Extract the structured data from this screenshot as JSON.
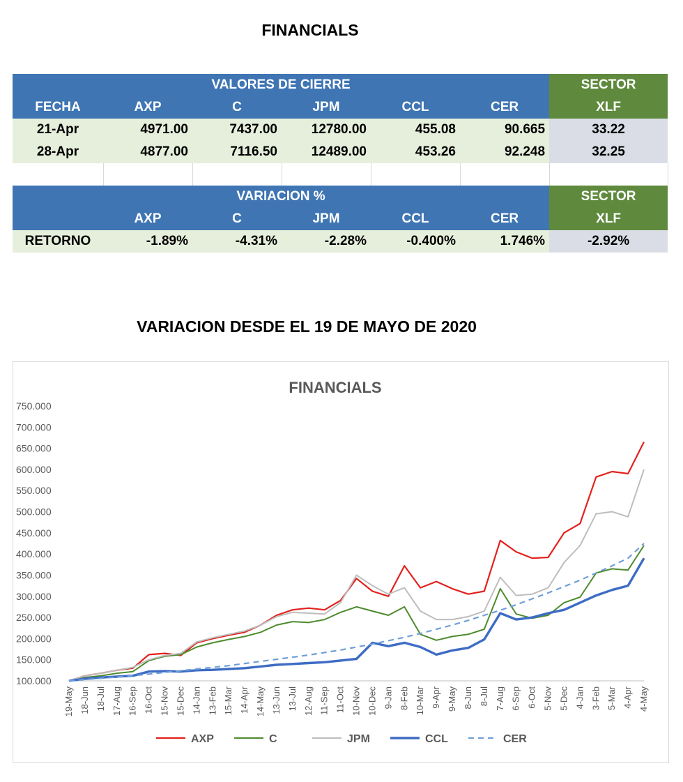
{
  "page_title": "FINANCIALS",
  "section_title": "VARIACION DESDE EL 19 DE MAYO DE 2020",
  "table1": {
    "group_header": "VALORES DE CIERRE",
    "sector_header": "SECTOR",
    "columns": [
      "FECHA",
      "AXP",
      "C",
      "JPM",
      "CCL",
      "CER",
      "XLF"
    ],
    "rows": [
      [
        "21-Apr",
        "4971.00",
        "7437.00",
        "12780.00",
        "455.08",
        "90.665",
        "33.22"
      ],
      [
        "28-Apr",
        "4877.00",
        "7116.50",
        "12489.00",
        "453.26",
        "92.248",
        "32.25"
      ]
    ]
  },
  "table2": {
    "group_header": "VARIACION %",
    "sector_header": "SECTOR",
    "columns": [
      "",
      "AXP",
      "C",
      "JPM",
      "CCL",
      "CER",
      "XLF"
    ],
    "rows": [
      [
        "RETORNO",
        "-1.89%",
        "-4.31%",
        "-2.28%",
        "-0.400%",
        "1.746%",
        "-2.92%"
      ]
    ]
  },
  "chart_data": {
    "type": "line",
    "title": "FINANCIALS",
    "ylim": [
      100,
      750
    ],
    "yticks": [
      "100.000",
      "150.000",
      "200.000",
      "250.000",
      "300.000",
      "350.000",
      "400.000",
      "450.000",
      "500.000",
      "550.000",
      "600.000",
      "650.000",
      "700.000",
      "750.000"
    ],
    "categories": [
      "19-May",
      "18-Jun",
      "18-Jul",
      "17-Aug",
      "16-Sep",
      "16-Oct",
      "15-Nov",
      "15-Dec",
      "14-Jan",
      "13-Feb",
      "15-Mar",
      "14-Apr",
      "14-May",
      "13-Jun",
      "13-Jul",
      "12-Aug",
      "11-Sep",
      "11-Oct",
      "10-Nov",
      "10-Dec",
      "9-Jan",
      "8-Feb",
      "10-Mar",
      "9-Apr",
      "9-May",
      "8-Jun",
      "8-Jul",
      "7-Aug",
      "6-Sep",
      "6-Oct",
      "5-Nov",
      "5-Dec",
      "4-Jan",
      "3-Feb",
      "5-Mar",
      "4-Apr",
      "4-May"
    ],
    "legend_position": "bottom",
    "grid": false,
    "series": [
      {
        "name": "AXP",
        "color": "#e2211c",
        "width": 2.2,
        "dash": "",
        "values": [
          100,
          112,
          118,
          125,
          130,
          162,
          165,
          160,
          190,
          200,
          208,
          215,
          232,
          255,
          268,
          272,
          268,
          290,
          342,
          312,
          300,
          372,
          320,
          335,
          318,
          305,
          312,
          432,
          405,
          390,
          392,
          450,
          472,
          582,
          595,
          590,
          665
        ]
      },
      {
        "name": "C",
        "color": "#4e8b2e",
        "width": 2.0,
        "dash": "",
        "values": [
          100,
          108,
          112,
          118,
          122,
          148,
          158,
          162,
          180,
          190,
          198,
          205,
          215,
          232,
          240,
          238,
          245,
          262,
          275,
          265,
          255,
          275,
          210,
          196,
          205,
          210,
          222,
          318,
          258,
          248,
          255,
          285,
          298,
          355,
          365,
          362,
          420
        ]
      },
      {
        "name": "JPM",
        "color": "#bdbdbd",
        "width": 2.0,
        "dash": "",
        "values": [
          100,
          112,
          118,
          125,
          132,
          150,
          160,
          165,
          192,
          202,
          210,
          218,
          232,
          252,
          262,
          260,
          258,
          285,
          350,
          325,
          305,
          320,
          265,
          245,
          245,
          252,
          265,
          345,
          302,
          305,
          320,
          380,
          420,
          495,
          500,
          488,
          600
        ]
      },
      {
        "name": "CCL",
        "color": "#3d6cc4",
        "width": 3.4,
        "dash": "",
        "values": [
          100,
          105,
          108,
          110,
          112,
          122,
          123,
          122,
          125,
          126,
          128,
          130,
          134,
          138,
          140,
          142,
          144,
          148,
          152,
          190,
          182,
          190,
          180,
          162,
          172,
          178,
          198,
          260,
          245,
          250,
          260,
          268,
          285,
          302,
          315,
          325,
          390
        ]
      },
      {
        "name": "CER",
        "color": "#6f9fd8",
        "width": 2.2,
        "dash": "8 6",
        "values": [
          100,
          103,
          106,
          109,
          112,
          116,
          120,
          124,
          128,
          132,
          136,
          141,
          146,
          151,
          156,
          161,
          167,
          173,
          180,
          187,
          195,
          203,
          212,
          222,
          232,
          243,
          255,
          267,
          280,
          294,
          308,
          323,
          338,
          355,
          372,
          390,
          425
        ]
      }
    ]
  }
}
